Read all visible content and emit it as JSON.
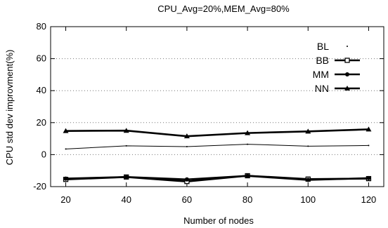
{
  "chart_data": {
    "type": "line",
    "title": "CPU_Avg=20%,MEM_Avg=80%",
    "xlabel": "Number of nodes",
    "ylabel": "CPU std dev improvment(%)",
    "x": [
      20,
      40,
      60,
      80,
      100,
      120
    ],
    "xlim": [
      15,
      125
    ],
    "ylim": [
      -20,
      80
    ],
    "yticks": [
      -20,
      0,
      20,
      40,
      60,
      80
    ],
    "xticks": [
      20,
      40,
      60,
      80,
      100,
      120
    ],
    "grid": "horizontal-dotted",
    "legend_position": "top-right",
    "series": [
      {
        "name": "BL",
        "marker": "dot",
        "line": "none",
        "values": [
          3.5,
          5.5,
          5.0,
          6.5,
          5.3,
          5.7
        ]
      },
      {
        "name": "BB",
        "marker": "square",
        "line": "thick",
        "values": [
          -15.5,
          -14.0,
          -16.8,
          -13.2,
          -15.3,
          -15.0
        ]
      },
      {
        "name": "MM",
        "marker": "circle",
        "line": "thick",
        "values": [
          -15.0,
          -14.0,
          -15.5,
          -13.3,
          -15.8,
          -14.7
        ]
      },
      {
        "name": "NN",
        "marker": "triangle",
        "line": "thick",
        "values": [
          14.8,
          15.0,
          11.5,
          13.5,
          14.5,
          15.8
        ]
      }
    ]
  }
}
